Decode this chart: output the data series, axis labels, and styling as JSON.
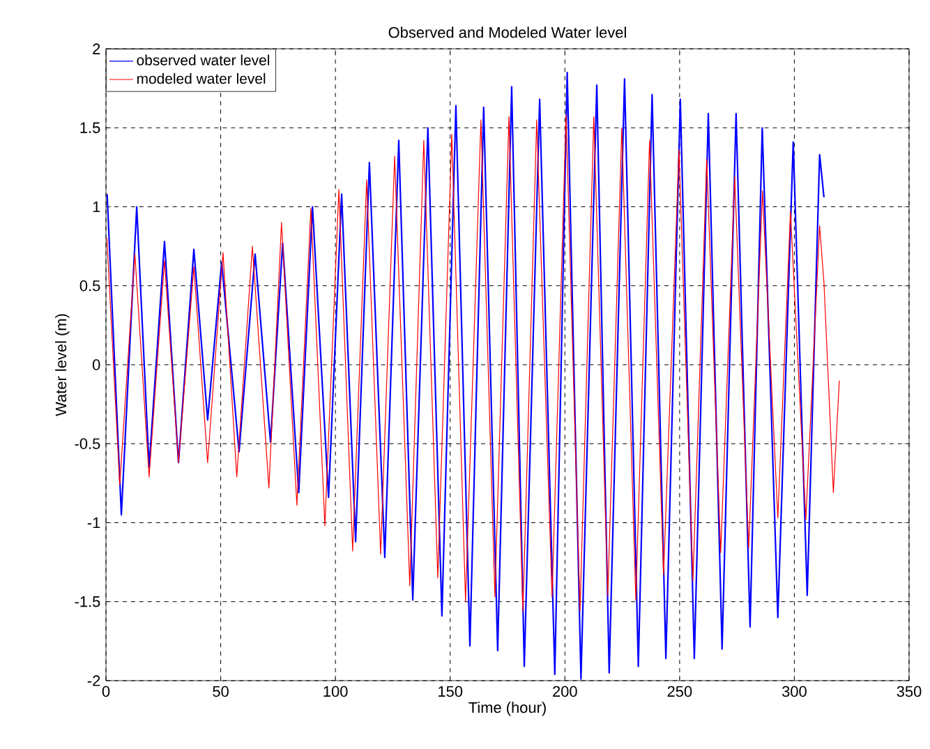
{
  "chart_data": {
    "type": "line",
    "title": "Observed and Modeled Water level",
    "xlabel": "Time (hour)",
    "ylabel": "Water level (m)",
    "xlim": [
      0,
      350
    ],
    "ylim": [
      -2,
      2
    ],
    "xticks": [
      0,
      50,
      100,
      150,
      200,
      250,
      300,
      350
    ],
    "yticks": [
      -2,
      -1.5,
      -1,
      -0.5,
      0,
      0.5,
      1,
      1.5,
      2
    ],
    "grid": true,
    "legend": "top left",
    "series": [
      {
        "name": "observed water level",
        "color": "#0000ff",
        "x": [
          0.5,
          6.7,
          13.4,
          18.8,
          25.5,
          31.6,
          38.3,
          44.3,
          50.4,
          58,
          65,
          71.7,
          77,
          84,
          90,
          97,
          102.7,
          108.8,
          114.8,
          121.5,
          127.6,
          133.7,
          140.3,
          146.4,
          152.5,
          158.6,
          164.6,
          170.7,
          176.8,
          182.3,
          189,
          195.6,
          201,
          207,
          213.9,
          219.3,
          226,
          232,
          238,
          244,
          250.3,
          256.4,
          262.5,
          268.5,
          274.6,
          280.7,
          286,
          292.8,
          299.5,
          305.6,
          311,
          312.9
        ],
        "values": [
          1.08,
          -0.95,
          1.0,
          -0.65,
          0.78,
          -0.62,
          0.73,
          -0.35,
          0.65,
          -0.55,
          0.7,
          -0.49,
          0.77,
          -0.81,
          1.0,
          -0.84,
          1.08,
          -1.12,
          1.28,
          -1.22,
          1.42,
          -1.49,
          1.5,
          -1.59,
          1.64,
          -1.78,
          1.63,
          -1.81,
          1.76,
          -1.91,
          1.68,
          -1.96,
          1.85,
          -1.99,
          1.77,
          -1.95,
          1.81,
          -1.91,
          1.71,
          -1.86,
          1.68,
          -1.86,
          1.59,
          -1.8,
          1.59,
          -1.66,
          1.5,
          -1.6,
          1.41,
          -1.46,
          1.33,
          1.06
        ]
      },
      {
        "name": "modeled water level",
        "color": "#ff0000",
        "x": [
          0.4,
          6,
          12.6,
          18.8,
          25.5,
          31.6,
          38.3,
          44.3,
          51,
          57,
          63.8,
          71,
          76.5,
          83.2,
          89.3,
          95.4,
          101.5,
          107.5,
          113.6,
          119.7,
          125.8,
          132.4,
          138.5,
          144.6,
          150.7,
          156.7,
          163.4,
          169.5,
          175.6,
          181.7,
          187.7,
          194.4,
          200.5,
          206.6,
          212.6,
          218.7,
          224.8,
          230.9,
          236.9,
          243,
          249.7,
          255.8,
          261.8,
          267.9,
          274,
          280.1,
          286.1,
          292.8,
          298.3,
          305,
          311,
          312.9,
          317,
          319.6
        ],
        "values": [
          0.8,
          -0.76,
          0.7,
          -0.71,
          0.66,
          -0.62,
          0.62,
          -0.62,
          0.71,
          -0.71,
          0.75,
          -0.78,
          0.9,
          -0.89,
          0.99,
          -1.02,
          1.11,
          -1.18,
          1.17,
          -1.2,
          1.32,
          -1.4,
          1.42,
          -1.35,
          1.46,
          -1.5,
          1.55,
          -1.47,
          1.57,
          -1.56,
          1.55,
          -1.47,
          1.58,
          -1.56,
          1.57,
          -1.46,
          1.5,
          -1.49,
          1.42,
          -1.33,
          1.36,
          -1.37,
          1.3,
          -1.19,
          1.19,
          -1.16,
          1.1,
          -0.97,
          0.97,
          -0.98,
          0.88,
          0.52,
          -0.81,
          -0.1
        ]
      }
    ]
  }
}
